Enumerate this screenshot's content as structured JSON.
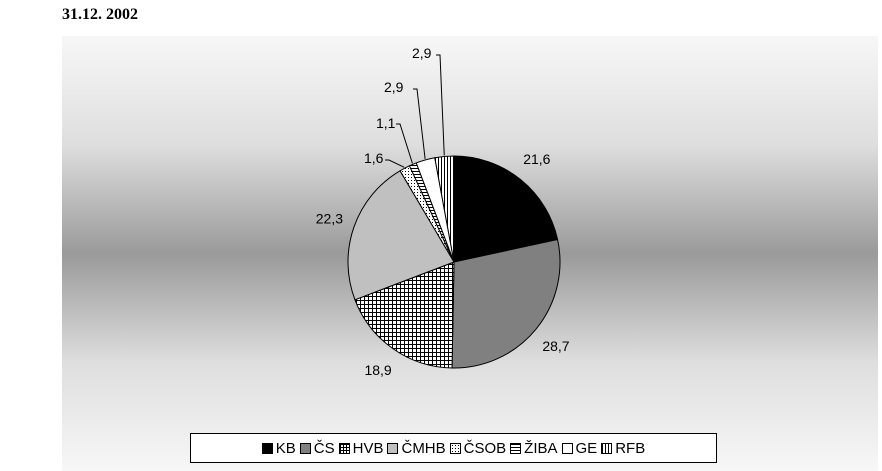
{
  "page": {
    "title": "31.12. 2002"
  },
  "chart_data": {
    "type": "pie",
    "title": "",
    "categories": [
      "KB",
      "ČS",
      "HVB",
      "ČMHB",
      "ČSOB",
      "ŽIBA",
      "GE",
      "RFB"
    ],
    "values": [
      21.6,
      28.7,
      18.9,
      22.3,
      1.6,
      1.1,
      2.9,
      2.9
    ],
    "value_labels": [
      "21,6",
      "28,7",
      "18,9",
      "22,3",
      "1,6",
      "1,1",
      "2,9",
      "2,9"
    ],
    "fills": [
      "black",
      "gray",
      "grid",
      "light-gray",
      "dots",
      "horizontal-lines",
      "white",
      "vertical-lines"
    ],
    "colors": {
      "black": "#000000",
      "gray": "#808080",
      "light-gray": "#c0c0c0",
      "white": "#ffffff"
    },
    "legend_position": "bottom"
  }
}
